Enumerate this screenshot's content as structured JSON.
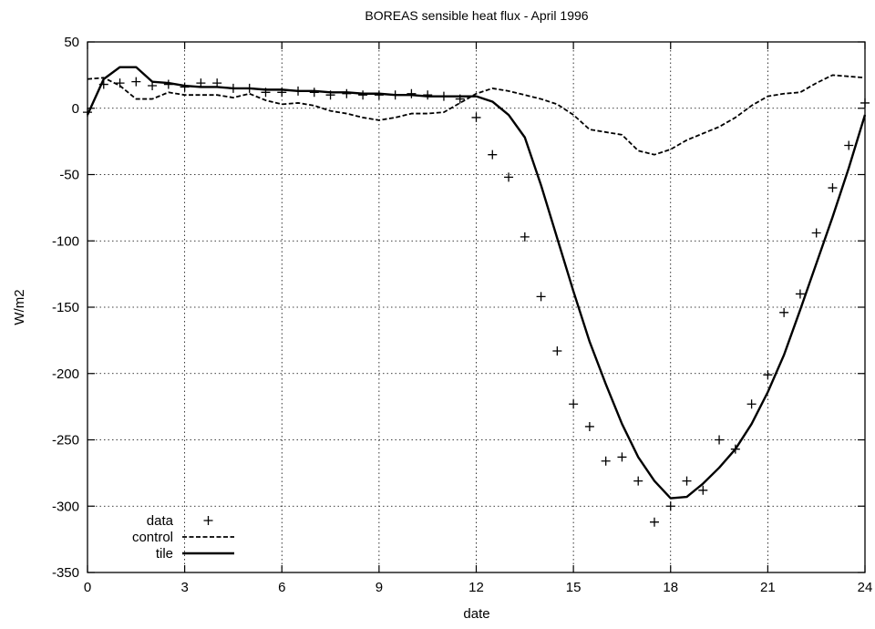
{
  "chart_data": {
    "type": "line",
    "title": "BOREAS sensible heat flux - April 1996",
    "xlabel": "date",
    "ylabel": "W/m2",
    "xlim": [
      0,
      24
    ],
    "ylim": [
      -350,
      50
    ],
    "xticks": [
      0,
      3,
      6,
      9,
      12,
      15,
      18,
      21,
      24
    ],
    "yticks": [
      50,
      0,
      -50,
      -100,
      -150,
      -200,
      -250,
      -300,
      -350
    ],
    "grid": true,
    "legend_position": "bottom-left",
    "series": [
      {
        "name": "data",
        "style": "points-plus",
        "x": [
          0,
          0.5,
          1,
          1.5,
          2,
          2.5,
          3,
          3.5,
          4,
          4.5,
          5,
          5.5,
          6,
          6.5,
          7,
          7.5,
          8,
          8.5,
          9,
          9.5,
          10,
          10.5,
          11,
          11.5,
          12,
          12.5,
          13,
          13.5,
          14,
          14.5,
          15,
          15.5,
          16,
          16.5,
          17,
          17.5,
          18,
          18.5,
          19,
          19.5,
          20,
          20.5,
          21,
          21.5,
          22,
          22.5,
          23,
          23.5,
          24
        ],
        "y": [
          -3,
          18,
          19,
          20,
          17,
          18,
          16,
          19,
          19,
          15,
          15,
          12,
          12,
          13,
          12,
          10,
          11,
          10,
          10,
          10,
          11,
          10,
          9,
          7,
          -7,
          -35,
          -52,
          -97,
          -142,
          -183,
          -223,
          -240,
          -266,
          -263,
          -281,
          -312,
          -300,
          -281,
          -288,
          -250,
          -257,
          -223,
          -201,
          -154,
          -140,
          -94,
          -60,
          -28,
          4
        ]
      },
      {
        "name": "control",
        "style": "dashed",
        "x": [
          0,
          0.5,
          1,
          1.5,
          2,
          2.5,
          3,
          3.5,
          4,
          4.5,
          5,
          5.5,
          6,
          6.5,
          7,
          7.5,
          8,
          8.5,
          9,
          9.5,
          10,
          10.5,
          11,
          11.5,
          12,
          12.5,
          13,
          13.5,
          14,
          14.5,
          15,
          15.5,
          16,
          16.5,
          17,
          17.5,
          18,
          18.5,
          19,
          19.5,
          20,
          20.5,
          21,
          21.5,
          22,
          22.5,
          23,
          23.5,
          24
        ],
        "y": [
          22,
          23,
          17,
          7,
          7,
          12,
          10,
          10,
          10,
          8,
          11,
          6,
          3,
          4,
          2,
          -2,
          -4,
          -7,
          -9,
          -7,
          -4,
          -4,
          -3,
          4,
          11,
          15,
          13,
          10,
          7,
          3,
          -5,
          -16,
          -18,
          -20,
          -32,
          -35,
          -31,
          -24,
          -19,
          -14,
          -7,
          2,
          9,
          11,
          12,
          19,
          25,
          24,
          23
        ]
      },
      {
        "name": "tile",
        "style": "solid",
        "x": [
          0,
          0.5,
          1,
          1.5,
          2,
          2.5,
          3,
          3.5,
          4,
          4.5,
          5,
          5.5,
          6,
          6.5,
          7,
          7.5,
          8,
          8.5,
          9,
          9.5,
          10,
          10.5,
          11,
          11.5,
          12,
          12.5,
          13,
          13.5,
          14,
          14.5,
          15,
          15.5,
          16,
          16.5,
          17,
          17.5,
          18,
          18.5,
          19,
          19.5,
          20,
          20.5,
          21,
          21.5,
          22,
          22.5,
          23,
          23.5,
          24
        ],
        "y": [
          -5,
          22,
          31,
          31,
          20,
          19,
          17,
          16,
          16,
          15,
          15,
          14,
          14,
          13,
          13,
          12,
          12,
          11,
          11,
          10,
          10,
          9,
          9,
          9,
          9,
          5,
          -5,
          -22,
          -58,
          -98,
          -138,
          -176,
          -208,
          -238,
          -263,
          -281,
          -294,
          -293,
          -283,
          -271,
          -257,
          -238,
          -214,
          -186,
          -152,
          -117,
          -82,
          -45,
          -5
        ]
      }
    ]
  }
}
